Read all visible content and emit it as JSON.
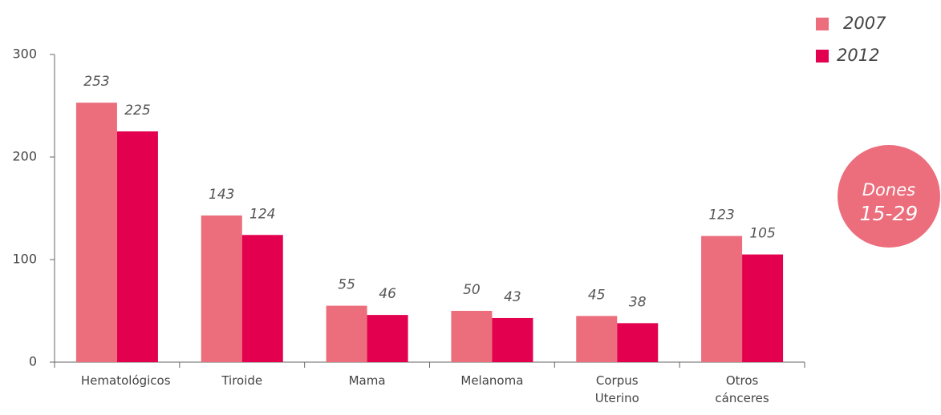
{
  "chart_data": {
    "type": "bar",
    "categories": [
      "Hematológicos",
      "Tiroide",
      "Mama",
      "Melanoma",
      "Corpus Uterino",
      "Otros cánceres"
    ],
    "series": [
      {
        "name": "2007",
        "color": "#ec6d7b",
        "values": [
          253,
          143,
          55,
          50,
          45,
          123
        ]
      },
      {
        "name": "2012",
        "color": "#e2004f",
        "values": [
          225,
          124,
          46,
          43,
          38,
          105
        ]
      }
    ],
    "ylim": [
      0,
      300
    ],
    "yticks": [
      0,
      100,
      200,
      300
    ],
    "grid": false,
    "legend": "top-right",
    "annotations": [
      "Dones",
      "15-29"
    ]
  }
}
